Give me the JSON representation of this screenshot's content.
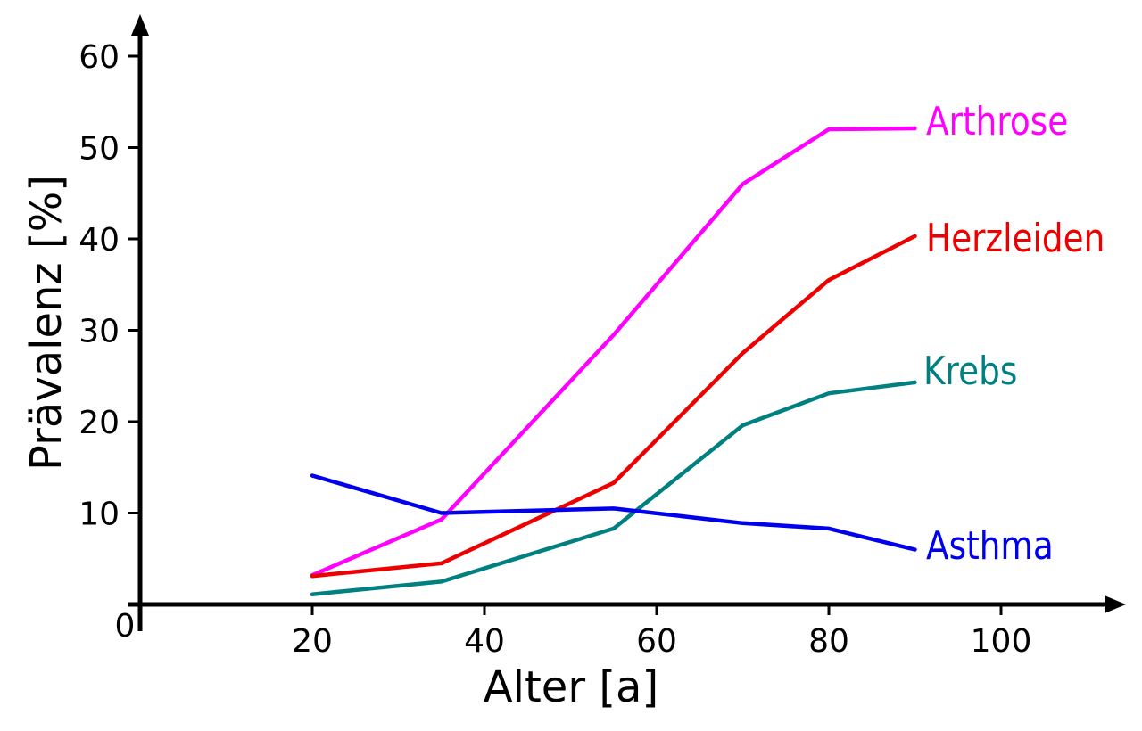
{
  "chart_data": {
    "type": "line",
    "xlabel": "Alter [a]",
    "ylabel": "Prävalenz [%]",
    "xlim": [
      0,
      115
    ],
    "ylim": [
      0,
      63
    ],
    "xticks": [
      20,
      40,
      60,
      80,
      100
    ],
    "yticks": [
      10,
      20,
      30,
      40,
      50,
      60
    ],
    "origin_label": "0",
    "grid": false,
    "legend": "inline labels at right end of each line",
    "series": [
      {
        "name": "Arthrose",
        "color": "#ff00ff",
        "points": [
          [
            20,
            3.2
          ],
          [
            35,
            9.3
          ],
          [
            55,
            29.5
          ],
          [
            70,
            46.0
          ],
          [
            80,
            52.0
          ],
          [
            90,
            52.1
          ]
        ]
      },
      {
        "name": "Herzleiden",
        "color": "#ee0000",
        "points": [
          [
            20,
            3.1
          ],
          [
            35,
            4.5
          ],
          [
            55,
            13.3
          ],
          [
            70,
            27.5
          ],
          [
            80,
            35.5
          ],
          [
            90,
            40.3
          ]
        ]
      },
      {
        "name": "Krebs",
        "color": "#008080",
        "points": [
          [
            20,
            1.1
          ],
          [
            35,
            2.5
          ],
          [
            55,
            8.3
          ],
          [
            70,
            19.6
          ],
          [
            80,
            23.1
          ],
          [
            90,
            24.3
          ]
        ]
      },
      {
        "name": "Asthma",
        "color": "#0000ee",
        "points": [
          [
            20,
            14.1
          ],
          [
            35,
            10.0
          ],
          [
            55,
            10.5
          ],
          [
            70,
            8.9
          ],
          [
            80,
            8.3
          ],
          [
            90,
            6.0
          ]
        ]
      }
    ]
  }
}
